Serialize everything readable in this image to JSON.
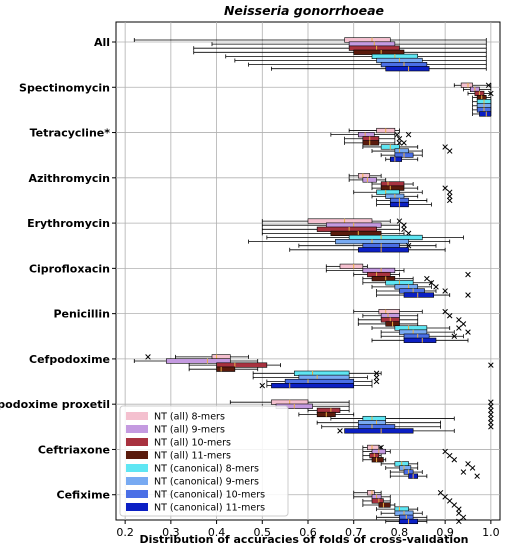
{
  "chart_data": {
    "type": "boxplot",
    "title": "Neisseria gonorrhoeae",
    "xlabel": "Distribution of accuracies of folds of cross-validation",
    "ylabel": "",
    "xlim": [
      0.18,
      1.02
    ],
    "xticks": [
      "0.2",
      "0.3",
      "0.4",
      "0.5",
      "0.6",
      "0.7",
      "0.8",
      "0.9",
      "1.0"
    ],
    "grid": true,
    "legend_position": "lower-left",
    "series": [
      {
        "name": "NT (all) 8-mers",
        "color": "#f4c0cf"
      },
      {
        "name": "NT (all) 9-mers",
        "color": "#c49ae0"
      },
      {
        "name": "NT (all) 10-mers",
        "color": "#a8323f"
      },
      {
        "name": "NT (all) 11-mers",
        "color": "#5a1a0c"
      },
      {
        "name": "NT (canonical) 8-mers",
        "color": "#5fe6f3"
      },
      {
        "name": "NT (canonical) 9-mers",
        "color": "#78aaf2"
      },
      {
        "name": "NT (canonical) 10-mers",
        "color": "#4a6fe6"
      },
      {
        "name": "NT (canonical) 11-mers",
        "color": "#0b1fc4"
      }
    ],
    "categories": [
      {
        "label": "All",
        "boxes": [
          [
            0.22,
            0.68,
            0.74,
            0.78,
            0.99,
            []
          ],
          [
            0.39,
            0.69,
            0.745,
            0.79,
            0.99,
            []
          ],
          [
            0.35,
            0.69,
            0.75,
            0.8,
            0.99,
            []
          ],
          [
            0.35,
            0.7,
            0.76,
            0.81,
            0.99,
            []
          ],
          [
            0.42,
            0.74,
            0.79,
            0.84,
            0.99,
            []
          ],
          [
            0.44,
            0.75,
            0.8,
            0.85,
            0.99,
            []
          ],
          [
            0.47,
            0.76,
            0.81,
            0.86,
            0.99,
            []
          ],
          [
            0.52,
            0.77,
            0.82,
            0.865,
            0.99,
            []
          ]
        ]
      },
      {
        "label": "Spectinomycin",
        "boxes": [
          [
            0.92,
            0.935,
            0.95,
            0.96,
            1.0,
            [
              0.995
            ]
          ],
          [
            0.94,
            0.955,
            0.965,
            0.975,
            1.0,
            []
          ],
          [
            0.95,
            0.965,
            0.975,
            0.985,
            1.0,
            [
              1.0
            ]
          ],
          [
            0.96,
            0.97,
            0.98,
            0.99,
            1.0,
            []
          ],
          [
            0.96,
            0.97,
            0.985,
            1.0,
            1.0,
            []
          ],
          [
            0.96,
            0.97,
            0.985,
            1.0,
            1.0,
            []
          ],
          [
            0.96,
            0.97,
            0.985,
            1.0,
            1.0,
            []
          ],
          [
            0.96,
            0.975,
            0.99,
            1.0,
            1.0,
            []
          ]
        ]
      },
      {
        "label": "Tetracycline*",
        "boxes": [
          [
            0.69,
            0.75,
            0.77,
            0.79,
            0.8,
            []
          ],
          [
            0.65,
            0.71,
            0.725,
            0.745,
            0.79,
            [
              0.795,
              0.82
            ]
          ],
          [
            0.68,
            0.72,
            0.735,
            0.755,
            0.79,
            [
              0.8
            ]
          ],
          [
            0.68,
            0.72,
            0.735,
            0.755,
            0.79,
            [
              0.8,
              0.81
            ]
          ],
          [
            0.72,
            0.76,
            0.78,
            0.8,
            0.84,
            [
              0.9
            ]
          ],
          [
            0.74,
            0.79,
            0.8,
            0.82,
            0.85,
            [
              0.91
            ]
          ],
          [
            0.76,
            0.79,
            0.81,
            0.83,
            0.85,
            []
          ],
          [
            0.77,
            0.78,
            0.79,
            0.805,
            0.84,
            []
          ]
        ]
      },
      {
        "label": "Azithromycin",
        "boxes": [
          [
            0.69,
            0.71,
            0.72,
            0.735,
            0.76,
            []
          ],
          [
            0.69,
            0.72,
            0.73,
            0.75,
            0.77,
            []
          ],
          [
            0.74,
            0.76,
            0.775,
            0.81,
            0.83,
            []
          ],
          [
            0.74,
            0.76,
            0.78,
            0.81,
            0.84,
            [
              0.9
            ]
          ],
          [
            0.7,
            0.75,
            0.77,
            0.8,
            0.85,
            [
              0.91
            ]
          ],
          [
            0.74,
            0.77,
            0.79,
            0.81,
            0.84,
            [
              0.91
            ]
          ],
          [
            0.75,
            0.78,
            0.8,
            0.82,
            0.86,
            [
              0.91
            ]
          ],
          [
            0.75,
            0.78,
            0.8,
            0.82,
            0.87,
            []
          ]
        ]
      },
      {
        "label": "Erythromycin",
        "boxes": [
          [
            0.5,
            0.6,
            0.68,
            0.74,
            0.78,
            [
              0.8
            ]
          ],
          [
            0.5,
            0.64,
            0.7,
            0.76,
            0.8,
            [
              0.81
            ]
          ],
          [
            0.5,
            0.62,
            0.69,
            0.75,
            0.8,
            [
              0.81
            ]
          ],
          [
            0.5,
            0.65,
            0.71,
            0.76,
            0.81,
            [
              0.82
            ]
          ],
          [
            0.51,
            0.69,
            0.76,
            0.85,
            0.94,
            []
          ],
          [
            0.47,
            0.66,
            0.74,
            0.82,
            0.91,
            []
          ],
          [
            0.58,
            0.72,
            0.76,
            0.8,
            0.88,
            [
              0.82
            ]
          ],
          [
            0.56,
            0.71,
            0.76,
            0.82,
            0.9,
            []
          ]
        ]
      },
      {
        "label": "Ciprofloxacin",
        "boxes": [
          [
            0.64,
            0.67,
            0.7,
            0.72,
            0.73,
            []
          ],
          [
            0.64,
            0.72,
            0.76,
            0.79,
            0.81,
            []
          ],
          [
            0.7,
            0.73,
            0.75,
            0.78,
            0.8,
            [
              0.95
            ]
          ],
          [
            0.72,
            0.74,
            0.77,
            0.79,
            0.83,
            [
              0.86
            ]
          ],
          [
            0.72,
            0.77,
            0.8,
            0.83,
            0.87,
            [
              0.87
            ]
          ],
          [
            0.74,
            0.79,
            0.82,
            0.84,
            0.87,
            [
              0.88
            ]
          ],
          [
            0.75,
            0.8,
            0.83,
            0.855,
            0.88,
            [
              0.9
            ]
          ],
          [
            0.75,
            0.81,
            0.84,
            0.875,
            0.91,
            [
              0.95
            ]
          ]
        ]
      },
      {
        "label": "Penicillin",
        "boxes": [
          [
            0.7,
            0.755,
            0.77,
            0.8,
            0.85,
            [
              0.9
            ]
          ],
          [
            0.72,
            0.76,
            0.775,
            0.8,
            0.84,
            [
              0.91
            ]
          ],
          [
            0.71,
            0.76,
            0.78,
            0.8,
            0.84,
            [
              0.93
            ]
          ],
          [
            0.71,
            0.77,
            0.785,
            0.8,
            0.84,
            [
              0.94
            ]
          ],
          [
            0.74,
            0.79,
            0.82,
            0.86,
            0.91,
            [
              0.93
            ]
          ],
          [
            0.76,
            0.8,
            0.83,
            0.86,
            0.92,
            [
              0.95
            ]
          ],
          [
            0.76,
            0.81,
            0.84,
            0.865,
            0.94,
            [
              0.92
            ]
          ],
          [
            0.74,
            0.81,
            0.85,
            0.88,
            0.95,
            []
          ]
        ]
      },
      {
        "label": "Cefpodoxime",
        "boxes": [
          [
            0.31,
            0.39,
            0.4,
            0.43,
            0.47,
            [
              0.25
            ]
          ],
          [
            0.22,
            0.29,
            0.38,
            0.43,
            0.49,
            []
          ],
          [
            0.34,
            0.4,
            0.44,
            0.51,
            0.54,
            [
              1.0
            ]
          ],
          [
            0.34,
            0.4,
            0.41,
            0.44,
            0.49,
            []
          ],
          [
            0.48,
            0.57,
            0.61,
            0.69,
            0.76,
            [
              0.75
            ]
          ],
          [
            0.48,
            0.58,
            0.62,
            0.69,
            0.73,
            [
              0.75
            ]
          ],
          [
            0.51,
            0.55,
            0.6,
            0.7,
            0.74,
            [
              0.75
            ]
          ],
          [
            0.51,
            0.52,
            0.56,
            0.7,
            0.74,
            [
              0.5
            ]
          ]
        ]
      },
      {
        "label": "Cefpodoxime proxetil",
        "boxes": [
          [
            0.43,
            0.52,
            0.56,
            0.6,
            0.69,
            [
              1.0
            ]
          ],
          [
            0.5,
            0.53,
            0.57,
            0.61,
            0.69,
            [
              1.0
            ]
          ],
          [
            0.6,
            0.62,
            0.65,
            0.67,
            0.69,
            [
              1.0
            ]
          ],
          [
            0.58,
            0.62,
            0.64,
            0.66,
            0.7,
            [
              1.0
            ]
          ],
          [
            0.65,
            0.72,
            0.74,
            0.77,
            0.92,
            [
              1.0
            ]
          ],
          [
            0.62,
            0.71,
            0.75,
            0.77,
            0.89,
            [
              1.0
            ]
          ],
          [
            0.63,
            0.71,
            0.74,
            0.79,
            0.89,
            [
              1.0
            ]
          ],
          [
            0.7,
            0.68,
            0.76,
            0.83,
            0.92,
            [
              0.67
            ]
          ]
        ]
      },
      {
        "label": "Ceftriaxone",
        "boxes": [
          [
            0.72,
            0.73,
            0.74,
            0.755,
            0.76,
            [
              0.76
            ]
          ],
          [
            0.72,
            0.74,
            0.755,
            0.77,
            0.78,
            [
              0.9
            ]
          ],
          [
            0.72,
            0.735,
            0.745,
            0.755,
            0.76,
            [
              0.91
            ]
          ],
          [
            0.72,
            0.74,
            0.75,
            0.765,
            0.77,
            [
              0.92
            ]
          ],
          [
            0.76,
            0.79,
            0.805,
            0.82,
            0.84,
            [
              0.95
            ]
          ],
          [
            0.77,
            0.8,
            0.81,
            0.825,
            0.84,
            [
              0.96
            ]
          ],
          [
            0.78,
            0.81,
            0.82,
            0.83,
            0.85,
            [
              0.94
            ]
          ],
          [
            0.78,
            0.82,
            0.83,
            0.84,
            0.86,
            [
              0.97
            ]
          ]
        ]
      },
      {
        "label": "Cefixime",
        "boxes": [
          [
            0.7,
            0.73,
            0.74,
            0.745,
            0.76,
            [
              0.89
            ]
          ],
          [
            0.7,
            0.74,
            0.75,
            0.76,
            0.78,
            [
              0.9
            ]
          ],
          [
            0.72,
            0.74,
            0.755,
            0.765,
            0.78,
            [
              0.91
            ]
          ],
          [
            0.72,
            0.755,
            0.765,
            0.78,
            0.79,
            [
              0.92
            ]
          ],
          [
            0.75,
            0.79,
            0.8,
            0.82,
            0.84,
            [
              0.93
            ]
          ],
          [
            0.76,
            0.79,
            0.81,
            0.83,
            0.85,
            [
              0.93
            ]
          ],
          [
            0.75,
            0.8,
            0.815,
            0.83,
            0.86,
            [
              0.94
            ]
          ],
          [
            0.77,
            0.8,
            0.82,
            0.84,
            0.86,
            [
              0.93
            ]
          ]
        ]
      }
    ]
  }
}
